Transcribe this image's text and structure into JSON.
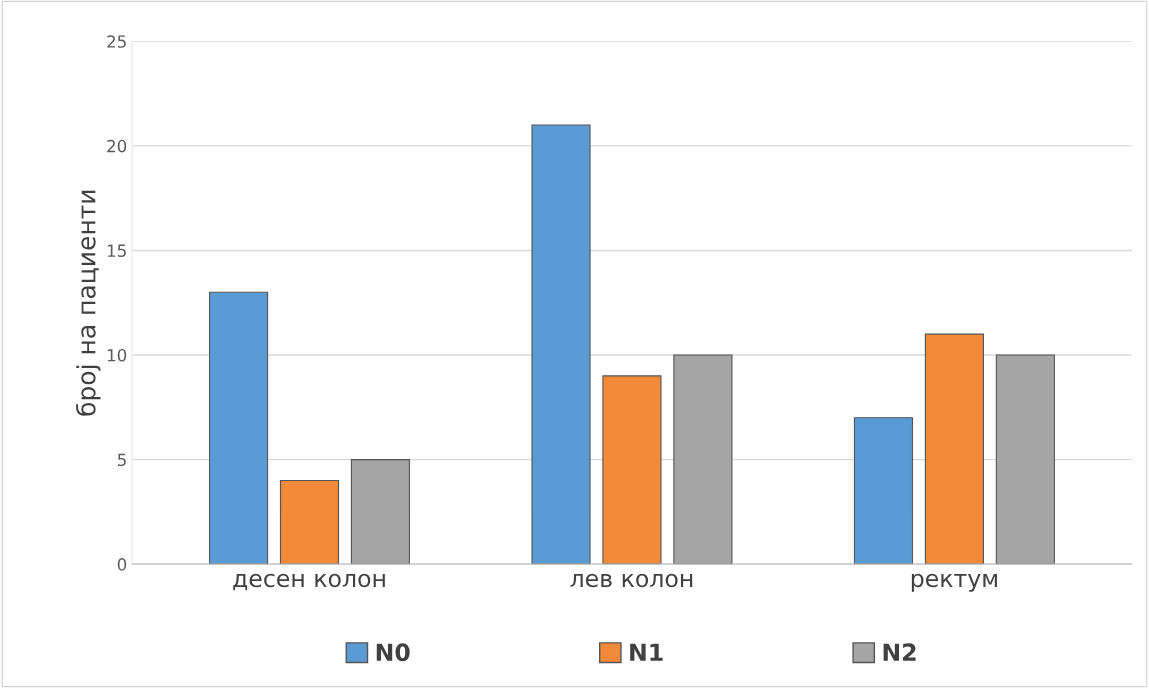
{
  "chart_data": {
    "type": "bar",
    "ylabel": "број на пациенти",
    "categories": [
      "десен колон",
      "лев колон",
      "ректум"
    ],
    "series": [
      {
        "name": "N0",
        "color": "#5b9bd5",
        "values": [
          13,
          21,
          7
        ]
      },
      {
        "name": "N1",
        "color": "#f28a3a",
        "values": [
          4,
          9,
          11
        ]
      },
      {
        "name": "N2",
        "color": "#a5a5a5",
        "values": [
          5,
          10,
          10
        ]
      }
    ],
    "ylim": [
      0,
      25
    ],
    "yticks": [
      0,
      5,
      10,
      15,
      20,
      25
    ],
    "grid": "y",
    "legend": "bottom"
  }
}
